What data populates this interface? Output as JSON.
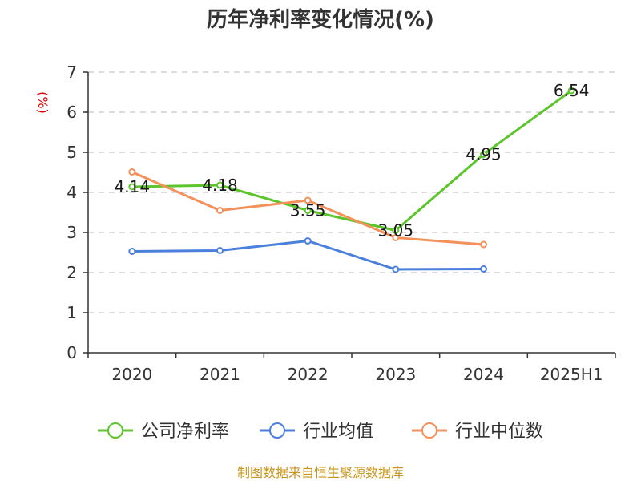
{
  "chart_data": {
    "type": "line",
    "title": "历年净利率变化情况(%)",
    "ylabel": "(%)",
    "xlabel": "",
    "categories": [
      "2020",
      "2021",
      "2022",
      "2023",
      "2024",
      "2025H1"
    ],
    "ylim": [
      0,
      7
    ],
    "yticks": [
      0,
      1,
      2,
      3,
      4,
      5,
      6,
      7
    ],
    "grid": true,
    "legend_position": "bottom",
    "series": [
      {
        "name": "公司净利率",
        "color": "#5cc52b",
        "values": [
          4.14,
          4.18,
          3.55,
          3.05,
          4.95,
          6.54
        ],
        "labels": [
          "4.14",
          "4.18",
          "3.55",
          "3.05",
          "4.95",
          "6.54"
        ]
      },
      {
        "name": "行业均值",
        "color": "#4a7fdb",
        "values": [
          2.53,
          2.55,
          2.79,
          2.08,
          2.09,
          null
        ]
      },
      {
        "name": "行业中位数",
        "color": "#f4905a",
        "values": [
          4.51,
          3.55,
          3.8,
          2.87,
          2.7,
          null
        ]
      }
    ]
  },
  "source_text": "制图数据来自恒生聚源数据库"
}
